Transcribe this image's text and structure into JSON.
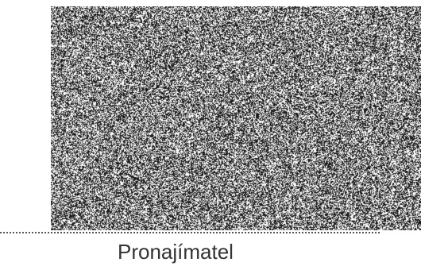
{
  "signature_block": {
    "signatory_label": "Pronajímatel",
    "stamp_image": "noise-pattern-image",
    "line_style": "dotted"
  },
  "colors": {
    "background": "#ffffff",
    "line": "#555555",
    "text": "#333333",
    "noise_dark": "#1a1a1a",
    "noise_light": "#ffffff"
  }
}
